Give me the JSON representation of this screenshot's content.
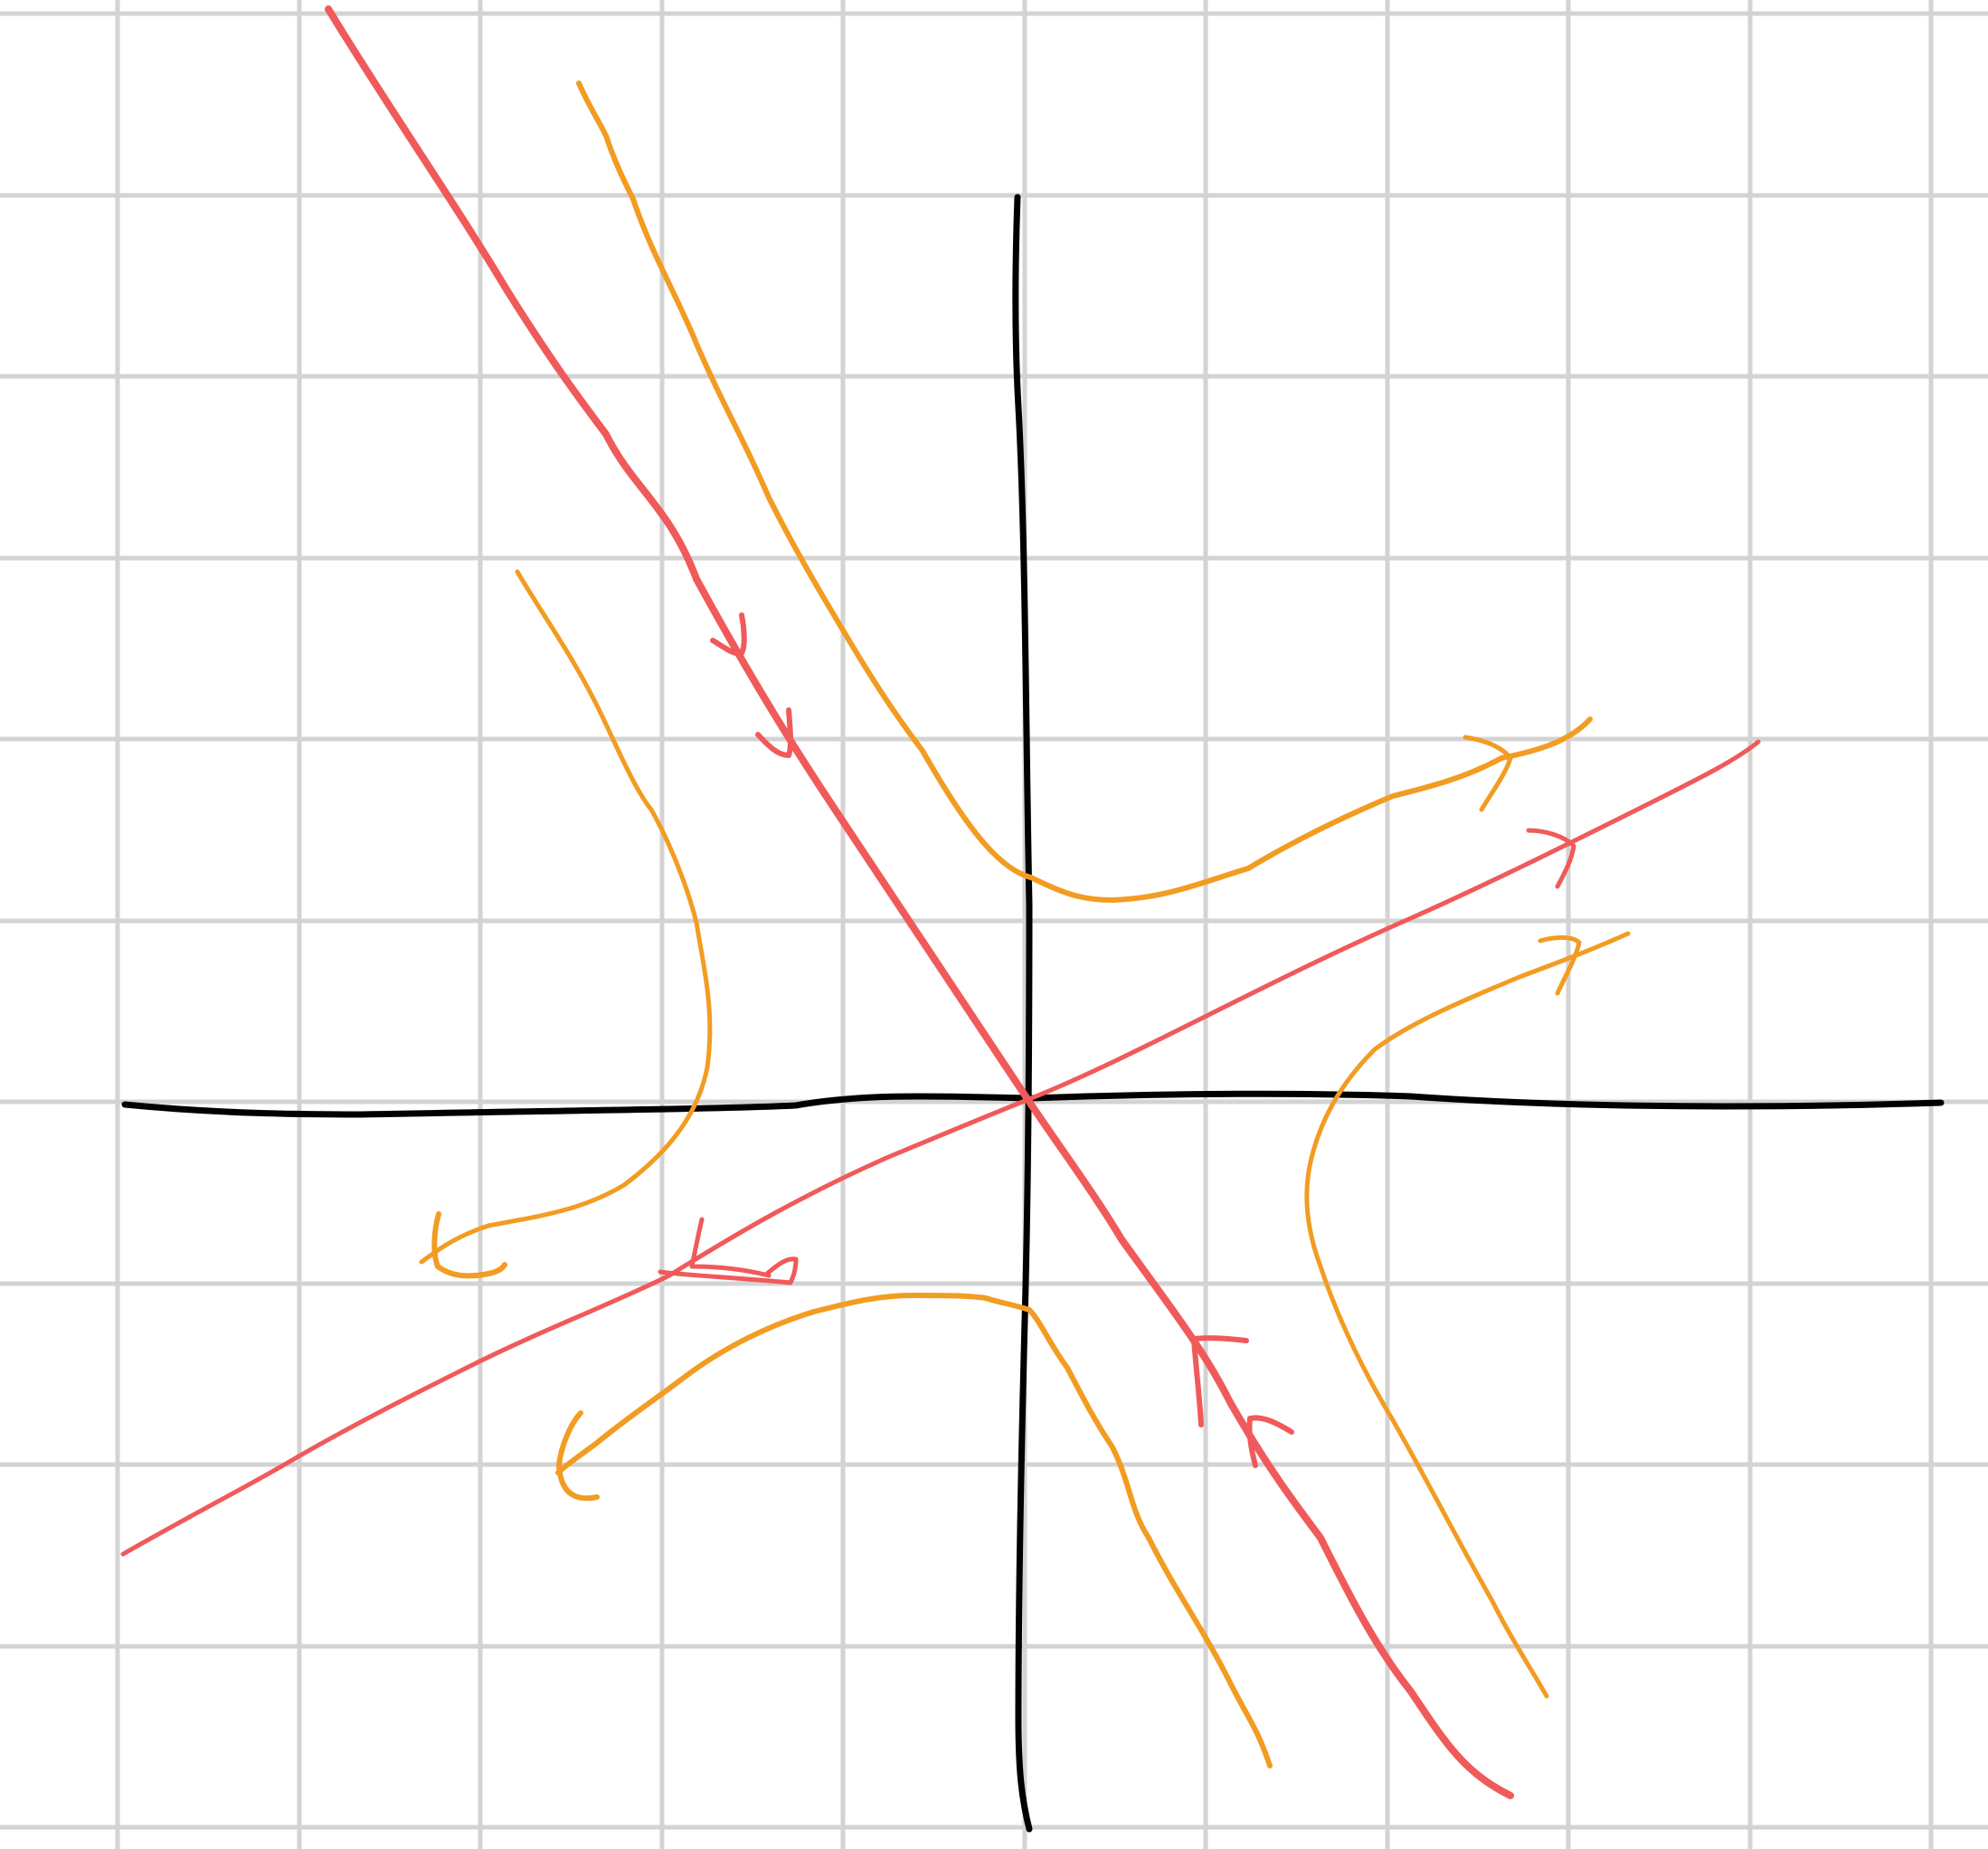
{
  "diagram": {
    "kind": "phase-portrait-saddle",
    "background": "#ffffff",
    "grid": {
      "visible": true,
      "color": "#d3d3d3"
    },
    "axes": {
      "color": "#000000"
    },
    "colors": {
      "eigenline": "#f05a5a",
      "trajectory": "#f29c22"
    },
    "eigenlines": [
      {
        "id": "stable",
        "flow": "toward-origin"
      },
      {
        "id": "unstable",
        "flow": "away-from-origin"
      }
    ],
    "trajectories": [
      {
        "id": "upper-right",
        "flow": "outward"
      },
      {
        "id": "upper-left",
        "flow": "outward"
      },
      {
        "id": "lower-left",
        "flow": "outward"
      },
      {
        "id": "lower-right",
        "flow": "outward"
      }
    ]
  }
}
